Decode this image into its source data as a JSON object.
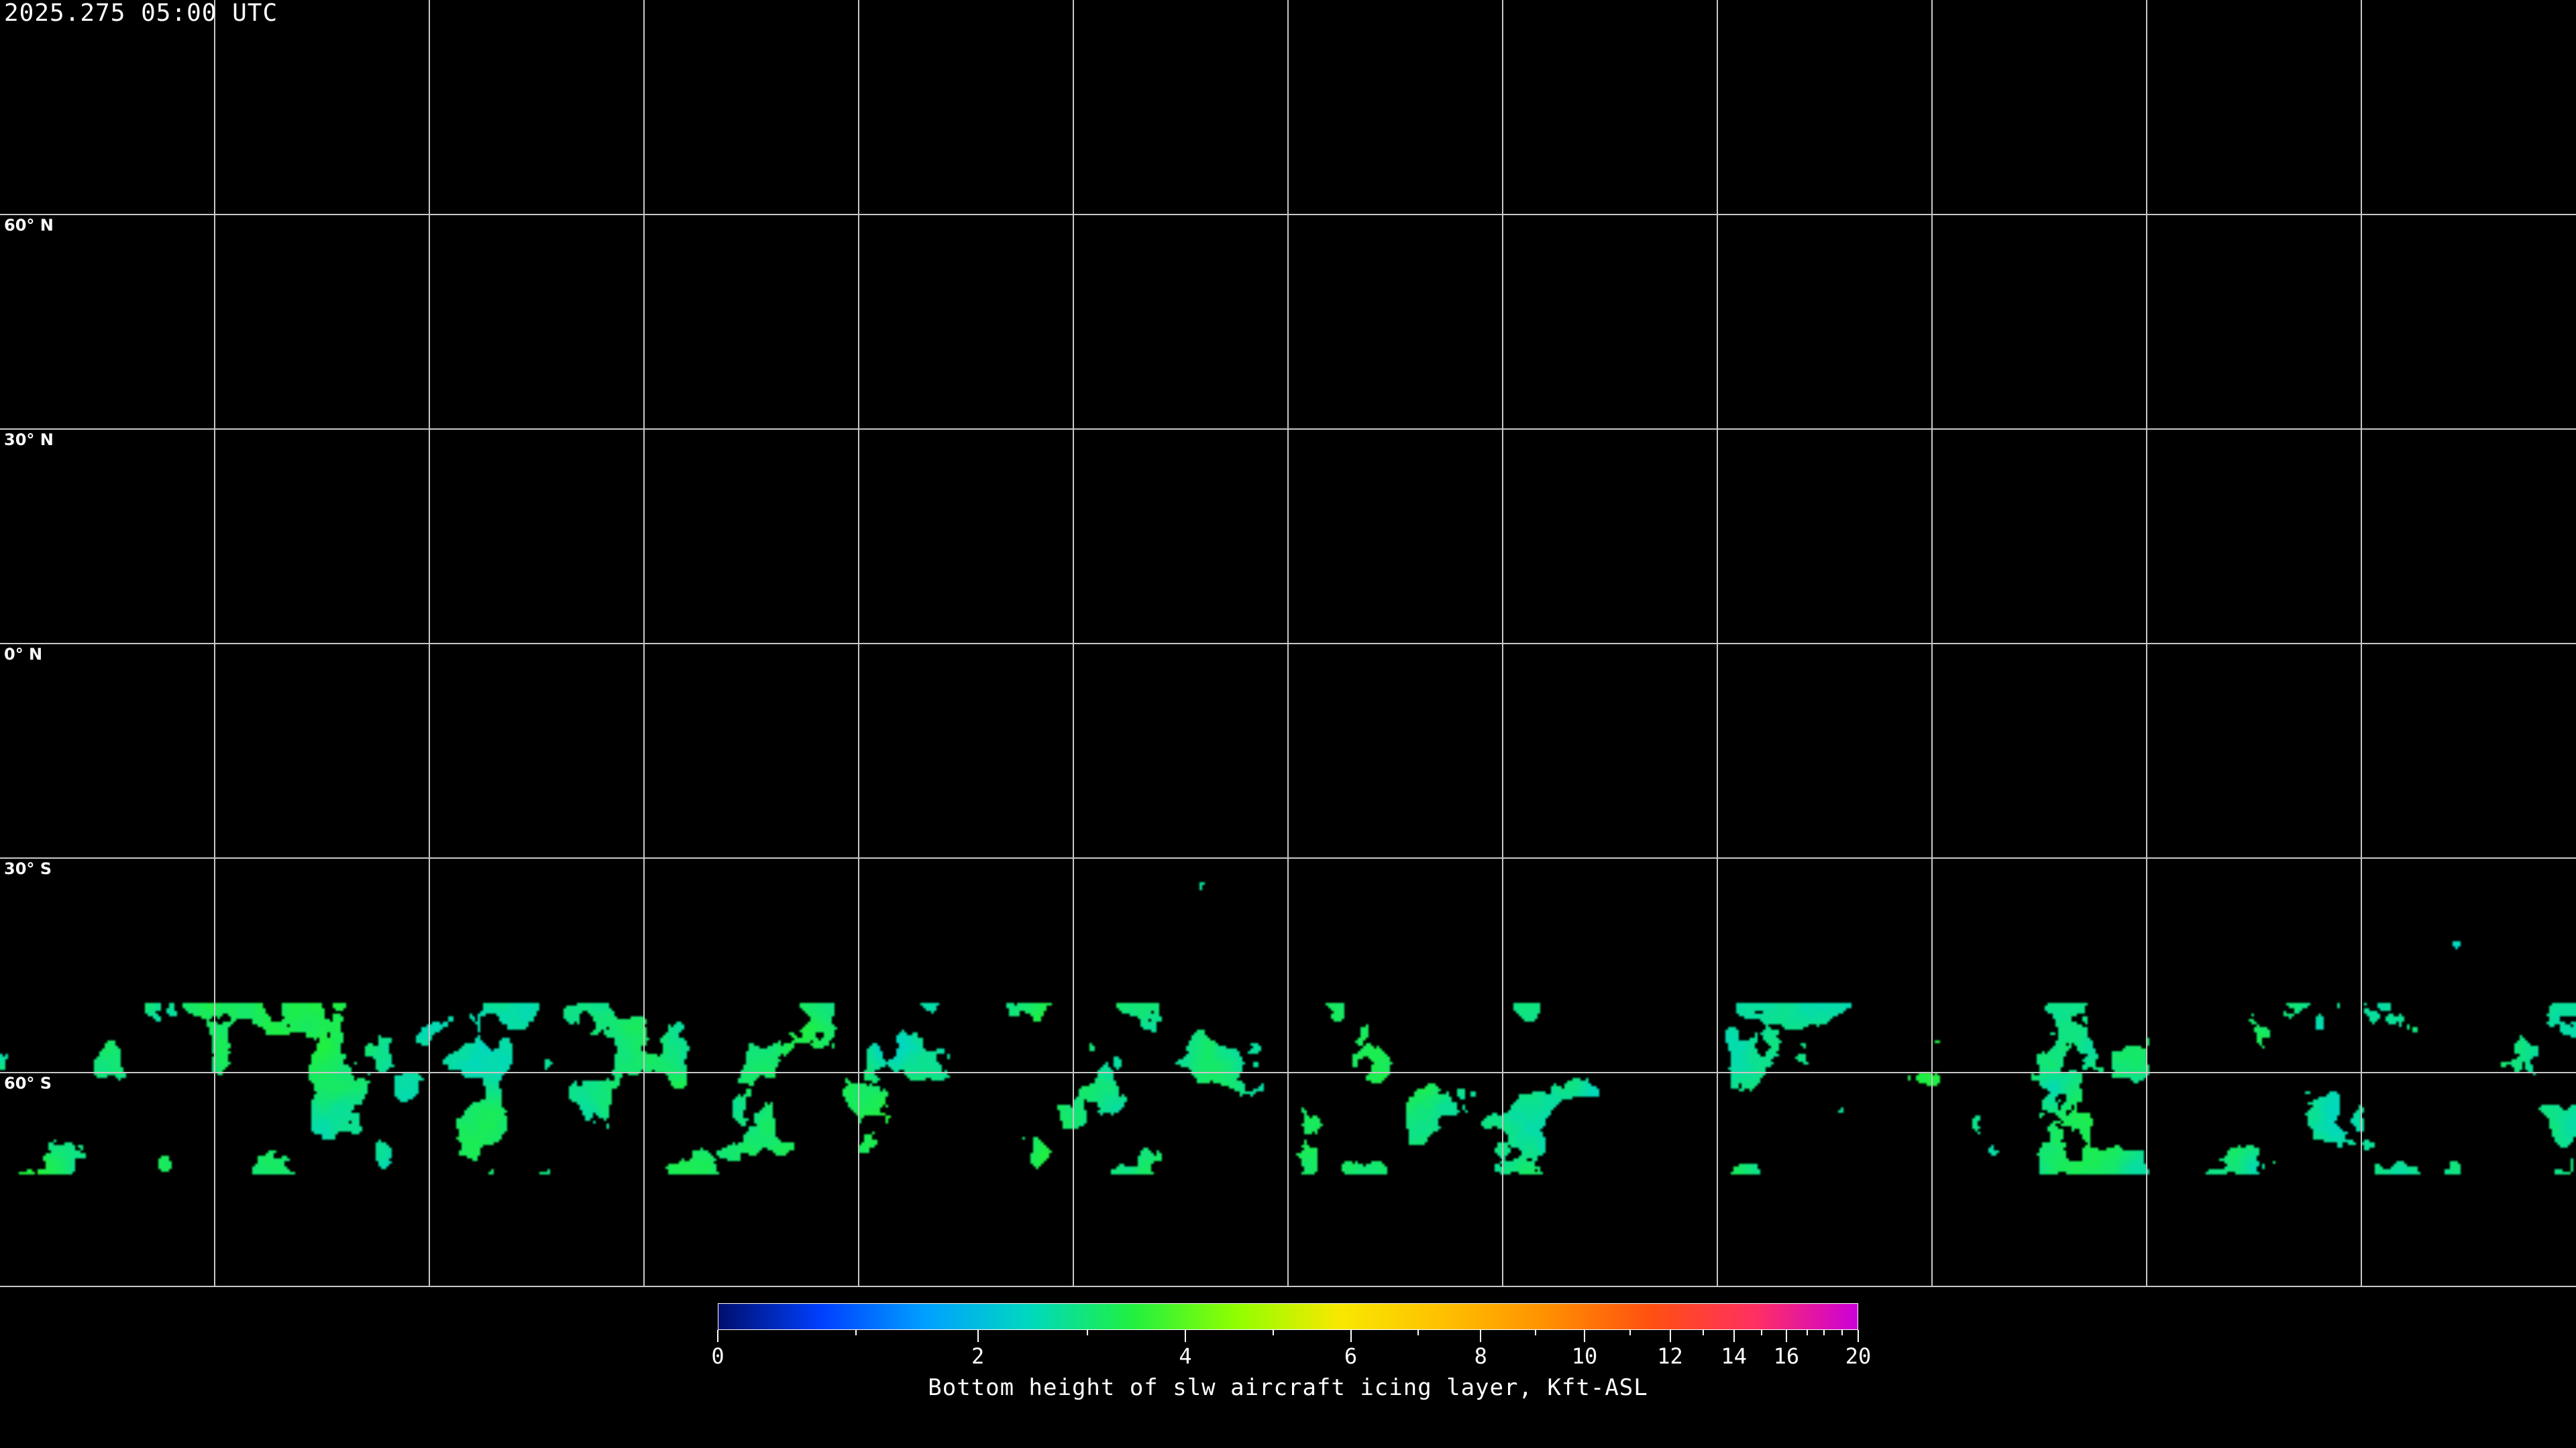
{
  "title": "2025.275 05:00 UTC",
  "latitude_labels": [
    "60° N",
    "30° N",
    "0° N",
    "30° S",
    "60° S"
  ],
  "colorbar": {
    "label": "Bottom height of slw aircraft icing layer, Kft-ASL",
    "range": [
      0,
      20
    ],
    "major_ticks": [
      "0",
      "2",
      "4",
      "6",
      "8",
      "10",
      "12",
      "14",
      "16",
      "20"
    ],
    "minor_ticks": [
      1,
      3,
      5,
      7,
      9,
      11,
      13,
      15,
      17,
      18,
      19
    ],
    "colors": [
      "#000f6e",
      "#0040ff",
      "#00a0ff",
      "#00d8c0",
      "#20f040",
      "#90ff00",
      "#f8e800",
      "#ffc000",
      "#ff9000",
      "#ff5010",
      "#ff3060",
      "#cc00d8"
    ]
  },
  "map": {
    "projection": "equirectangular",
    "grid_spacing_deg": 30,
    "coastlines": true,
    "background": "#000000",
    "grid_color": "#c8c8c8"
  }
}
